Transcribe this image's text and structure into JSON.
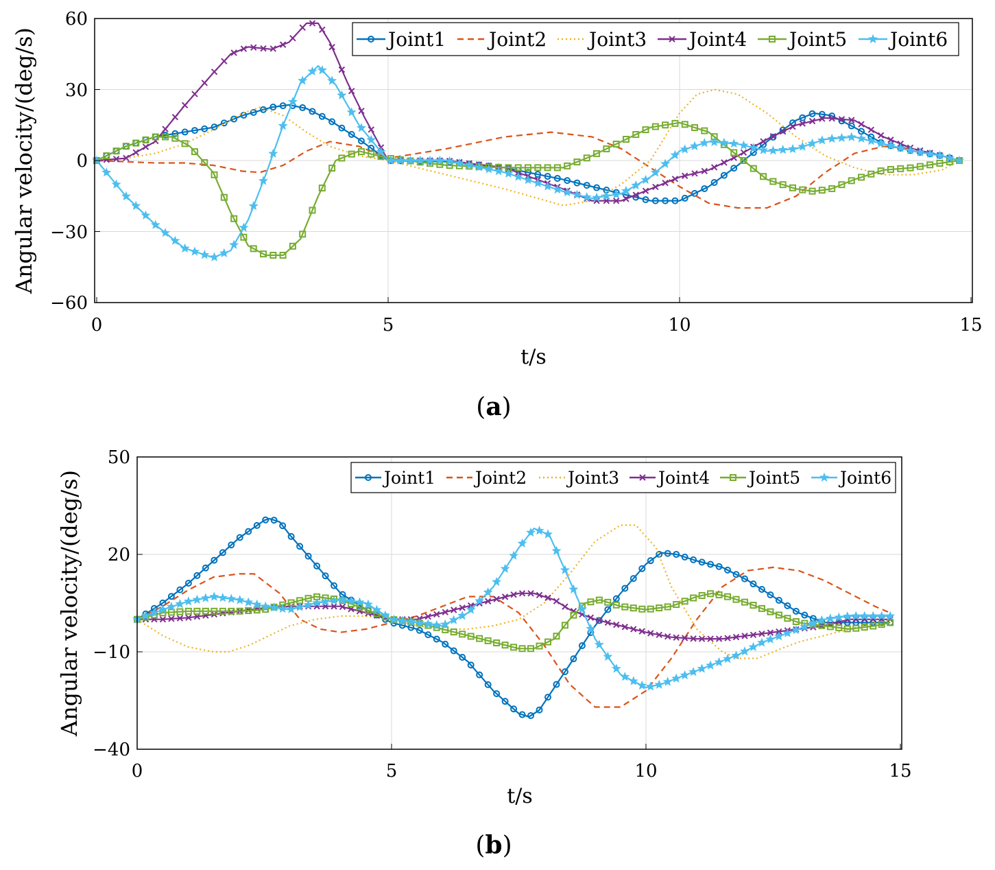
{
  "colors": {
    "Joint1": "#0072BD",
    "Joint2": "#D95319",
    "Joint3": "#EDB120",
    "Joint4": "#7E2F8E",
    "Joint5": "#77AC30",
    "Joint6": "#4DBEEE"
  },
  "chart_data": [
    {
      "id": "a",
      "type": "line",
      "caption_letter": "a",
      "xlabel": "t/s",
      "ylabel": "Angular velocity/(deg/s)",
      "xlim": [
        0,
        15
      ],
      "ylim": [
        -60,
        60
      ],
      "xticks": [
        "0",
        "5",
        "10",
        "15"
      ],
      "yticks": [
        "60",
        "30",
        "0",
        "−30",
        "−60"
      ],
      "legend_position": "top-right",
      "series": [
        {
          "name": "Joint1",
          "style": "solid",
          "marker": "circle",
          "x": [
            0,
            0.5,
            1,
            1.5,
            2,
            2.5,
            3,
            3.3,
            3.6,
            4,
            4.5,
            5,
            6,
            7,
            8,
            8.5,
            9,
            9.5,
            10,
            10.5,
            11,
            11.5,
            12,
            12.3,
            12.6,
            13,
            13.5,
            14,
            14.5,
            14.8
          ],
          "y": [
            0,
            6,
            10,
            12,
            14,
            19,
            22.5,
            23.5,
            22,
            17,
            9,
            0,
            -0.5,
            -3,
            -8,
            -11,
            -14,
            -17,
            -17,
            -11,
            -2,
            8,
            17,
            20,
            19,
            14,
            7,
            4,
            2,
            0
          ]
        },
        {
          "name": "Joint2",
          "style": "dashed",
          "marker": "none",
          "x": [
            0,
            0.5,
            1,
            1.5,
            2,
            2.5,
            2.8,
            3.2,
            3.6,
            4,
            4.5,
            5,
            6,
            7,
            7.8,
            8.5,
            9,
            9.5,
            10,
            10.5,
            11,
            11.5,
            12,
            12.5,
            13,
            13.5,
            14,
            14.5,
            14.8
          ],
          "y": [
            0,
            -0.5,
            -1,
            -1,
            -2,
            -4.5,
            -5,
            -2,
            4,
            8,
            6,
            1,
            5,
            10,
            12,
            10,
            5,
            -3,
            -11,
            -18,
            -20,
            -20,
            -15,
            -5,
            3,
            6,
            5,
            2,
            0
          ]
        },
        {
          "name": "Joint3",
          "style": "dotted",
          "marker": "none",
          "x": [
            0,
            0.5,
            1,
            1.5,
            2,
            2.5,
            2.8,
            3.2,
            3.6,
            4,
            4.5,
            5,
            6,
            7,
            8,
            8.5,
            9,
            9.5,
            10,
            10.3,
            10.6,
            11,
            11.5,
            12,
            12.5,
            13,
            13.5,
            14,
            14.5,
            14.8
          ],
          "y": [
            0,
            1,
            3,
            7,
            13,
            20,
            22.5,
            19,
            12,
            6,
            2,
            0,
            -6,
            -12,
            -19,
            -17,
            -10,
            0,
            20,
            28,
            30,
            28,
            20,
            10,
            2,
            -3,
            -6,
            -6,
            -4,
            0
          ]
        },
        {
          "name": "Joint4",
          "style": "solid",
          "marker": "x",
          "x": [
            0,
            0.5,
            1,
            1.5,
            2,
            2.3,
            2.6,
            3,
            3.3,
            3.6,
            3.8,
            4,
            4.3,
            4.6,
            5,
            6,
            7,
            8,
            8.5,
            9,
            9.5,
            10,
            10.5,
            11,
            11.5,
            12,
            12.5,
            13,
            13.5,
            14,
            14.5,
            14.8
          ],
          "y": [
            0,
            1,
            8,
            23,
            37,
            45,
            48,
            47,
            50,
            58,
            58,
            50,
            33,
            18,
            0,
            0,
            -3,
            -12,
            -17,
            -17,
            -12,
            -7,
            -4,
            2,
            9,
            15,
            18,
            17,
            10,
            5,
            2,
            0
          ]
        },
        {
          "name": "Joint5",
          "style": "solid",
          "marker": "square",
          "x": [
            0,
            0.5,
            1,
            1.3,
            1.6,
            2,
            2.3,
            2.6,
            2.9,
            3.2,
            3.5,
            3.8,
            4.1,
            4.5,
            5,
            6,
            7,
            8,
            8.5,
            9,
            9.5,
            10,
            10.5,
            11,
            11.5,
            12,
            12.3,
            12.6,
            13,
            13.5,
            14,
            14.5,
            14.8
          ],
          "y": [
            0,
            6,
            10,
            10,
            6,
            -5,
            -22,
            -36,
            -40,
            -40,
            -33,
            -15,
            0,
            4,
            1,
            -2,
            -3,
            -3,
            2,
            8,
            14,
            16,
            12,
            2,
            -8,
            -12,
            -13,
            -12,
            -8,
            -4,
            -3,
            -1,
            0
          ]
        },
        {
          "name": "Joint6",
          "style": "solid",
          "marker": "star",
          "x": [
            0,
            0.5,
            1,
            1.5,
            2,
            2.3,
            2.6,
            2.9,
            3.2,
            3.5,
            3.8,
            4.1,
            4.5,
            5,
            6,
            7,
            8,
            8.5,
            9,
            9.5,
            10,
            10.5,
            11,
            11.5,
            12,
            12.5,
            13,
            13.5,
            14,
            14.5,
            14.8
          ],
          "y": [
            0,
            -15,
            -27,
            -37,
            -41,
            -38,
            -25,
            -6,
            15,
            33,
            40,
            32,
            15,
            0,
            0,
            -5,
            -13,
            -16,
            -14,
            -7,
            4,
            8,
            7,
            4,
            5,
            9,
            10,
            7,
            4,
            2,
            0
          ]
        }
      ]
    },
    {
      "id": "b",
      "type": "line",
      "caption_letter": "b",
      "xlabel": "t/s",
      "ylabel": "Angular velocity/(deg/s)",
      "xlim": [
        0,
        15
      ],
      "ylim": [
        -40,
        50
      ],
      "xticks": [
        "0",
        "5",
        "10",
        "15"
      ],
      "yticks": [
        "50",
        "20",
        "−10",
        "−40"
      ],
      "legend_position": "top-right",
      "series": [
        {
          "name": "Joint1",
          "style": "solid",
          "marker": "circle",
          "x": [
            0,
            0.5,
            1,
            1.5,
            2,
            2.5,
            2.6,
            2.8,
            3,
            3.5,
            4,
            4.5,
            5,
            5.5,
            6,
            6.5,
            7,
            7.5,
            7.7,
            7.9,
            8.2,
            8.5,
            9,
            9.5,
            10,
            10.3,
            10.6,
            11,
            11.5,
            12,
            12.5,
            13,
            13.5,
            14,
            14.5,
            14.8
          ],
          "y": [
            0,
            5,
            11,
            18,
            25,
            30.5,
            31,
            30,
            26,
            17,
            8,
            3,
            -1,
            -3,
            -7,
            -13,
            -22,
            -29,
            -30,
            -28,
            -21,
            -14,
            -2,
            8,
            17,
            20.5,
            20,
            18,
            16,
            12,
            7,
            2,
            -1,
            -1,
            -1,
            -1
          ]
        },
        {
          "name": "Joint2",
          "style": "dashed",
          "marker": "none",
          "x": [
            0,
            0.5,
            1,
            1.5,
            2,
            2.3,
            2.8,
            3.2,
            3.6,
            4,
            4.5,
            5,
            5.5,
            6,
            6.5,
            7,
            7.5,
            8,
            8.5,
            9,
            9.5,
            10,
            10.5,
            11,
            11.5,
            12,
            12.5,
            13,
            13.5,
            14,
            14.5,
            14.8
          ],
          "y": [
            0,
            4,
            9,
            13,
            14,
            14,
            8,
            0,
            -3,
            -4,
            -3,
            -1,
            1,
            4,
            7,
            7,
            2,
            -8,
            -20,
            -27,
            -27,
            -22,
            -12,
            0,
            10,
            15,
            16,
            15,
            12,
            8,
            4,
            2
          ]
        },
        {
          "name": "Joint3",
          "style": "dotted",
          "marker": "none",
          "x": [
            0,
            0.5,
            1,
            1.5,
            1.8,
            2.2,
            2.6,
            3,
            3.5,
            4,
            4.5,
            5,
            5.5,
            6,
            6.5,
            7,
            7.5,
            8,
            8.5,
            9,
            9.5,
            9.8,
            10.2,
            10.5,
            11,
            11.5,
            11.8,
            12.2,
            12.5,
            13,
            13.5,
            14,
            14.5,
            14.8
          ],
          "y": [
            0,
            -5,
            -8.5,
            -10,
            -10,
            -8,
            -5,
            -2,
            0,
            1,
            1,
            0,
            -2,
            -3,
            -3,
            -2,
            0,
            5,
            14,
            24,
            29,
            29,
            22,
            10,
            -3,
            -10,
            -12,
            -12,
            -10,
            -7,
            -5,
            -3,
            -1,
            0
          ]
        },
        {
          "name": "Joint4",
          "style": "solid",
          "marker": "x",
          "x": [
            0,
            0.5,
            1,
            1.5,
            2,
            2.5,
            3,
            3.5,
            4,
            4.5,
            5,
            5.5,
            6,
            6.5,
            7,
            7.5,
            7.8,
            8.2,
            8.5,
            9,
            9.5,
            10,
            10.5,
            11,
            11.5,
            12,
            12.5,
            13,
            13.5,
            14,
            14.5,
            14.8
          ],
          "y": [
            0,
            0,
            0.5,
            1.5,
            2.5,
            3.5,
            4,
            4,
            4,
            2,
            0,
            0,
            2,
            4,
            6,
            8,
            8,
            6,
            3,
            0,
            -2,
            -4,
            -5.5,
            -6,
            -6,
            -5,
            -4,
            -3,
            -2,
            0,
            0,
            0
          ]
        },
        {
          "name": "Joint5",
          "style": "solid",
          "marker": "square",
          "x": [
            0,
            0.5,
            1,
            1.5,
            2,
            2.5,
            3,
            3.5,
            4,
            4.5,
            5,
            5.5,
            6,
            6.5,
            7,
            7.5,
            7.8,
            8.2,
            8.5,
            8.8,
            9.1,
            9.5,
            10,
            10.5,
            11,
            11.3,
            11.6,
            12,
            12.5,
            13,
            13.5,
            14,
            14.5,
            14.8
          ],
          "y": [
            0,
            2,
            2.5,
            2.5,
            2.5,
            3,
            5,
            7,
            6,
            3,
            0,
            -1,
            -3,
            -5,
            -7,
            -9,
            -9,
            -6,
            0,
            5,
            6,
            4,
            3,
            4,
            7,
            8,
            7,
            5,
            2,
            -1,
            -2,
            -3,
            -2,
            -1
          ]
        },
        {
          "name": "Joint6",
          "style": "solid",
          "marker": "star",
          "x": [
            0,
            0.5,
            1,
            1.5,
            2,
            2.5,
            3,
            3.5,
            4,
            4.5,
            5,
            5.5,
            6,
            6.5,
            7,
            7.5,
            7.8,
            8.1,
            8.5,
            9,
            9.5,
            10,
            10.3,
            10.8,
            11.3,
            11.8,
            12.3,
            13,
            13.5,
            14,
            14.5,
            14.8
          ],
          "y": [
            0,
            3,
            5.5,
            7,
            6,
            4,
            3,
            5,
            6,
            5,
            0,
            -1,
            -2,
            2,
            10,
            22,
            28,
            26,
            12,
            -6,
            -17,
            -21,
            -20,
            -17,
            -14,
            -11,
            -7,
            -3,
            0,
            1,
            1,
            1
          ]
        }
      ]
    }
  ]
}
